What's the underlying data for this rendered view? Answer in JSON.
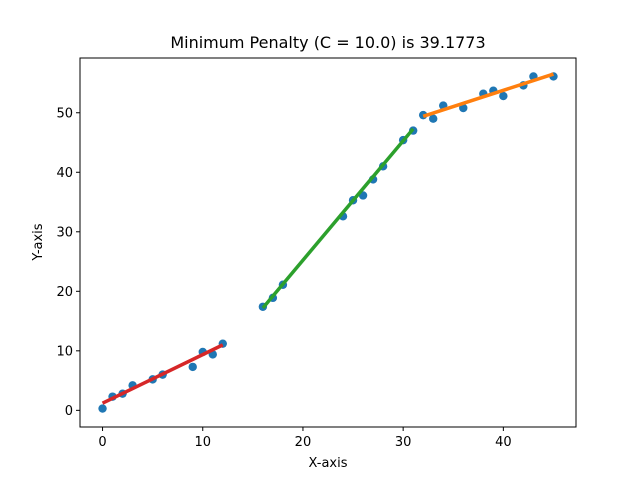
{
  "chart_data": {
    "type": "scatter",
    "title": "Minimum Penalty (C = 10.0) is 39.1773",
    "xlabel": "X-axis",
    "ylabel": "Y-axis",
    "xlim": [
      -2.25,
      47.25
    ],
    "ylim": [
      -2.8,
      59.2
    ],
    "x_ticks": [
      0,
      10,
      20,
      30,
      40
    ],
    "y_ticks": [
      0,
      10,
      20,
      30,
      40,
      50
    ],
    "grid": false,
    "legend": "none",
    "points": {
      "color": "#1f77b4",
      "x": [
        0,
        1,
        2,
        3,
        5,
        6,
        9,
        10,
        11,
        12,
        16,
        17,
        18,
        24,
        25,
        26,
        27,
        28,
        30,
        31,
        32,
        33,
        34,
        36,
        38,
        39,
        40,
        42,
        43,
        45
      ],
      "y": [
        0.3,
        2.3,
        2.8,
        4.2,
        5.2,
        6.0,
        7.3,
        9.8,
        9.4,
        11.2,
        17.4,
        18.9,
        21.1,
        32.6,
        35.3,
        36.1,
        38.8,
        41.0,
        45.4,
        47.0,
        49.6,
        49.0,
        51.2,
        50.8,
        53.2,
        53.7,
        52.8,
        54.6,
        56.1,
        56.1
      ]
    },
    "segments": [
      {
        "color": "#d62728",
        "x": [
          0,
          12
        ],
        "y": [
          1.2,
          11.0
        ]
      },
      {
        "color": "#2ca02c",
        "x": [
          16,
          31
        ],
        "y": [
          17.2,
          47.3
        ]
      },
      {
        "color": "#ff7f0e",
        "x": [
          32,
          45
        ],
        "y": [
          49.4,
          56.5
        ]
      }
    ]
  }
}
